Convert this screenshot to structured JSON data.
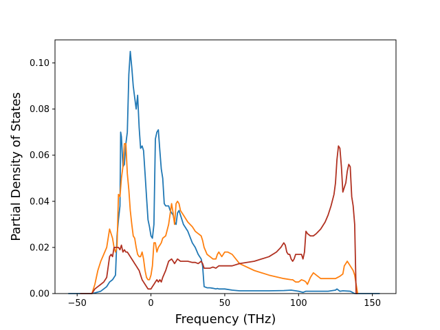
{
  "chart_data": {
    "type": "line",
    "title": "",
    "xlabel": "Frequency (THz)",
    "ylabel": "Partial Density of States",
    "xlim": [
      -65,
      166
    ],
    "ylim": [
      0,
      0.11
    ],
    "xticks": [
      -50,
      0,
      50,
      100,
      150
    ],
    "xtick_labels": [
      "−50",
      "0",
      "50",
      "100",
      "150"
    ],
    "yticks": [
      0.0,
      0.02,
      0.04,
      0.06,
      0.08,
      0.1
    ],
    "ytick_labels": [
      "0.00",
      "0.02",
      "0.04",
      "0.06",
      "0.08",
      "0.10"
    ],
    "grid": false,
    "legend": null,
    "series": [
      {
        "color": "#1f77b4",
        "x": [
          -56,
          -40,
          -38,
          -34,
          -30,
          -28,
          -26,
          -25,
          -24,
          -23,
          -22,
          -21,
          -20.5,
          -20,
          -19,
          -18,
          -17,
          -16,
          -15,
          -14,
          -13,
          -12,
          -11,
          -10,
          -9,
          -8,
          -7,
          -6,
          -5,
          -4,
          -3,
          -2,
          -1,
          0,
          1,
          2,
          3,
          4,
          5,
          6,
          7,
          8,
          9,
          10,
          11,
          12,
          13,
          14,
          15,
          16,
          17,
          18,
          19,
          20,
          22,
          25,
          28,
          30,
          32,
          34,
          35,
          36,
          38,
          40,
          42,
          44,
          45,
          46,
          48,
          50,
          55,
          60,
          70,
          80,
          90,
          95,
          100,
          103,
          105,
          110,
          120,
          125,
          126,
          128,
          130,
          135,
          138,
          140,
          155
        ],
        "y": [
          0,
          0,
          0.0003,
          0.001,
          0.003,
          0.005,
          0.006,
          0.007,
          0.008,
          0.025,
          0.032,
          0.038,
          0.07,
          0.068,
          0.055,
          0.056,
          0.065,
          0.07,
          0.095,
          0.105,
          0.098,
          0.09,
          0.085,
          0.08,
          0.086,
          0.072,
          0.063,
          0.064,
          0.062,
          0.052,
          0.042,
          0.032,
          0.029,
          0.025,
          0.024,
          0.03,
          0.067,
          0.07,
          0.071,
          0.062,
          0.054,
          0.05,
          0.039,
          0.038,
          0.038,
          0.038,
          0.036,
          0.035,
          0.034,
          0.031,
          0.03,
          0.035,
          0.036,
          0.034,
          0.03,
          0.027,
          0.022,
          0.02,
          0.017,
          0.015,
          0.012,
          0.003,
          0.0025,
          0.0025,
          0.0023,
          0.002,
          0.0022,
          0.002,
          0.002,
          0.002,
          0.0015,
          0.0012,
          0.0012,
          0.0012,
          0.0013,
          0.0015,
          0.001,
          0.0005,
          0.001,
          0.001,
          0.001,
          0.0015,
          0.002,
          0.001,
          0.0012,
          0.001,
          0,
          0,
          0
        ]
      },
      {
        "color": "#ff7f0e",
        "x": [
          -40,
          -38,
          -36,
          -34,
          -32,
          -30,
          -28,
          -26,
          -25,
          -24,
          -23,
          -22,
          -21,
          -20,
          -19,
          -18,
          -17,
          -16,
          -15,
          -14,
          -13,
          -12,
          -11,
          -10,
          -9,
          -8,
          -7,
          -6,
          -5,
          -4,
          -3,
          -2,
          -1,
          0,
          1,
          2,
          3,
          4,
          5,
          6,
          7,
          8,
          10,
          12,
          14,
          15,
          16,
          17,
          18,
          19,
          20,
          22,
          25,
          28,
          30,
          32,
          34,
          35,
          36,
          38,
          40,
          42,
          44,
          45,
          46,
          48,
          50,
          52,
          55,
          60,
          70,
          80,
          90,
          95,
          96,
          98,
          100,
          102,
          104,
          105,
          106,
          108,
          110,
          115,
          120,
          125,
          128,
          130,
          131,
          132,
          133,
          134,
          135,
          136,
          137,
          138,
          140
        ],
        "y": [
          0,
          0.004,
          0.01,
          0.014,
          0.017,
          0.02,
          0.028,
          0.024,
          0.02,
          0.018,
          0.02,
          0.043,
          0.042,
          0.05,
          0.055,
          0.065,
          0.065,
          0.052,
          0.045,
          0.036,
          0.03,
          0.025,
          0.024,
          0.02,
          0.017,
          0.016,
          0.016,
          0.018,
          0.015,
          0.01,
          0.007,
          0.006,
          0.006,
          0.008,
          0.012,
          0.022,
          0.022,
          0.018,
          0.02,
          0.021,
          0.022,
          0.024,
          0.025,
          0.03,
          0.039,
          0.035,
          0.03,
          0.039,
          0.04,
          0.039,
          0.036,
          0.034,
          0.031,
          0.029,
          0.027,
          0.026,
          0.025,
          0.023,
          0.02,
          0.017,
          0.016,
          0.015,
          0.015,
          0.017,
          0.018,
          0.016,
          0.018,
          0.018,
          0.017,
          0.013,
          0.01,
          0.008,
          0.0065,
          0.006,
          0.006,
          0.005,
          0.005,
          0.006,
          0.0055,
          0.005,
          0.004,
          0.007,
          0.009,
          0.0065,
          0.0065,
          0.0065,
          0.0075,
          0.0085,
          0.012,
          0.013,
          0.014,
          0.013,
          0.012,
          0.011,
          0.01,
          0.008,
          0
        ]
      },
      {
        "color": "#b03020",
        "x": [
          -48,
          -40,
          -38,
          -36,
          -34,
          -32,
          -30,
          -28,
          -27,
          -26,
          -25,
          -24,
          -23,
          -22,
          -21,
          -20,
          -19,
          -18,
          -17,
          -16,
          -15,
          -14,
          -13,
          -12,
          -11,
          -10,
          -9,
          -8,
          -7,
          -6,
          -5,
          -4,
          -3,
          -2,
          -1,
          0,
          1,
          2,
          3,
          4,
          5,
          6,
          7,
          8,
          10,
          12,
          14,
          15,
          16,
          17,
          18,
          20,
          22,
          25,
          28,
          30,
          32,
          34,
          35,
          36,
          38,
          40,
          42,
          44,
          46,
          48,
          50,
          55,
          60,
          70,
          80,
          85,
          88,
          90,
          91,
          92,
          93,
          94,
          95,
          96,
          97,
          98,
          100,
          102,
          103,
          104,
          105,
          106,
          108,
          110,
          112,
          115,
          118,
          120,
          122,
          124,
          125,
          126,
          127,
          128,
          129,
          130,
          131,
          132,
          133,
          134,
          135,
          136,
          137,
          138,
          139,
          140
        ],
        "y": [
          0,
          0,
          0.002,
          0.003,
          0.004,
          0.005,
          0.007,
          0.016,
          0.017,
          0.016,
          0.02,
          0.02,
          0.02,
          0.02,
          0.019,
          0.021,
          0.018,
          0.019,
          0.018,
          0.018,
          0.017,
          0.016,
          0.015,
          0.014,
          0.013,
          0.012,
          0.011,
          0.01,
          0.008,
          0.006,
          0.005,
          0.004,
          0.003,
          0.002,
          0.002,
          0.002,
          0.003,
          0.004,
          0.005,
          0.006,
          0.005,
          0.006,
          0.005,
          0.007,
          0.01,
          0.014,
          0.015,
          0.014,
          0.013,
          0.014,
          0.015,
          0.014,
          0.014,
          0.014,
          0.0135,
          0.0135,
          0.013,
          0.014,
          0.013,
          0.011,
          0.011,
          0.011,
          0.0115,
          0.011,
          0.012,
          0.012,
          0.012,
          0.012,
          0.013,
          0.014,
          0.016,
          0.018,
          0.02,
          0.022,
          0.021,
          0.018,
          0.017,
          0.017,
          0.015,
          0.014,
          0.015,
          0.017,
          0.017,
          0.017,
          0.015,
          0.018,
          0.027,
          0.026,
          0.025,
          0.025,
          0.026,
          0.028,
          0.031,
          0.034,
          0.038,
          0.043,
          0.048,
          0.058,
          0.064,
          0.063,
          0.055,
          0.044,
          0.046,
          0.048,
          0.053,
          0.056,
          0.055,
          0.042,
          0.038,
          0.03,
          0.0,
          0
        ]
      }
    ]
  }
}
